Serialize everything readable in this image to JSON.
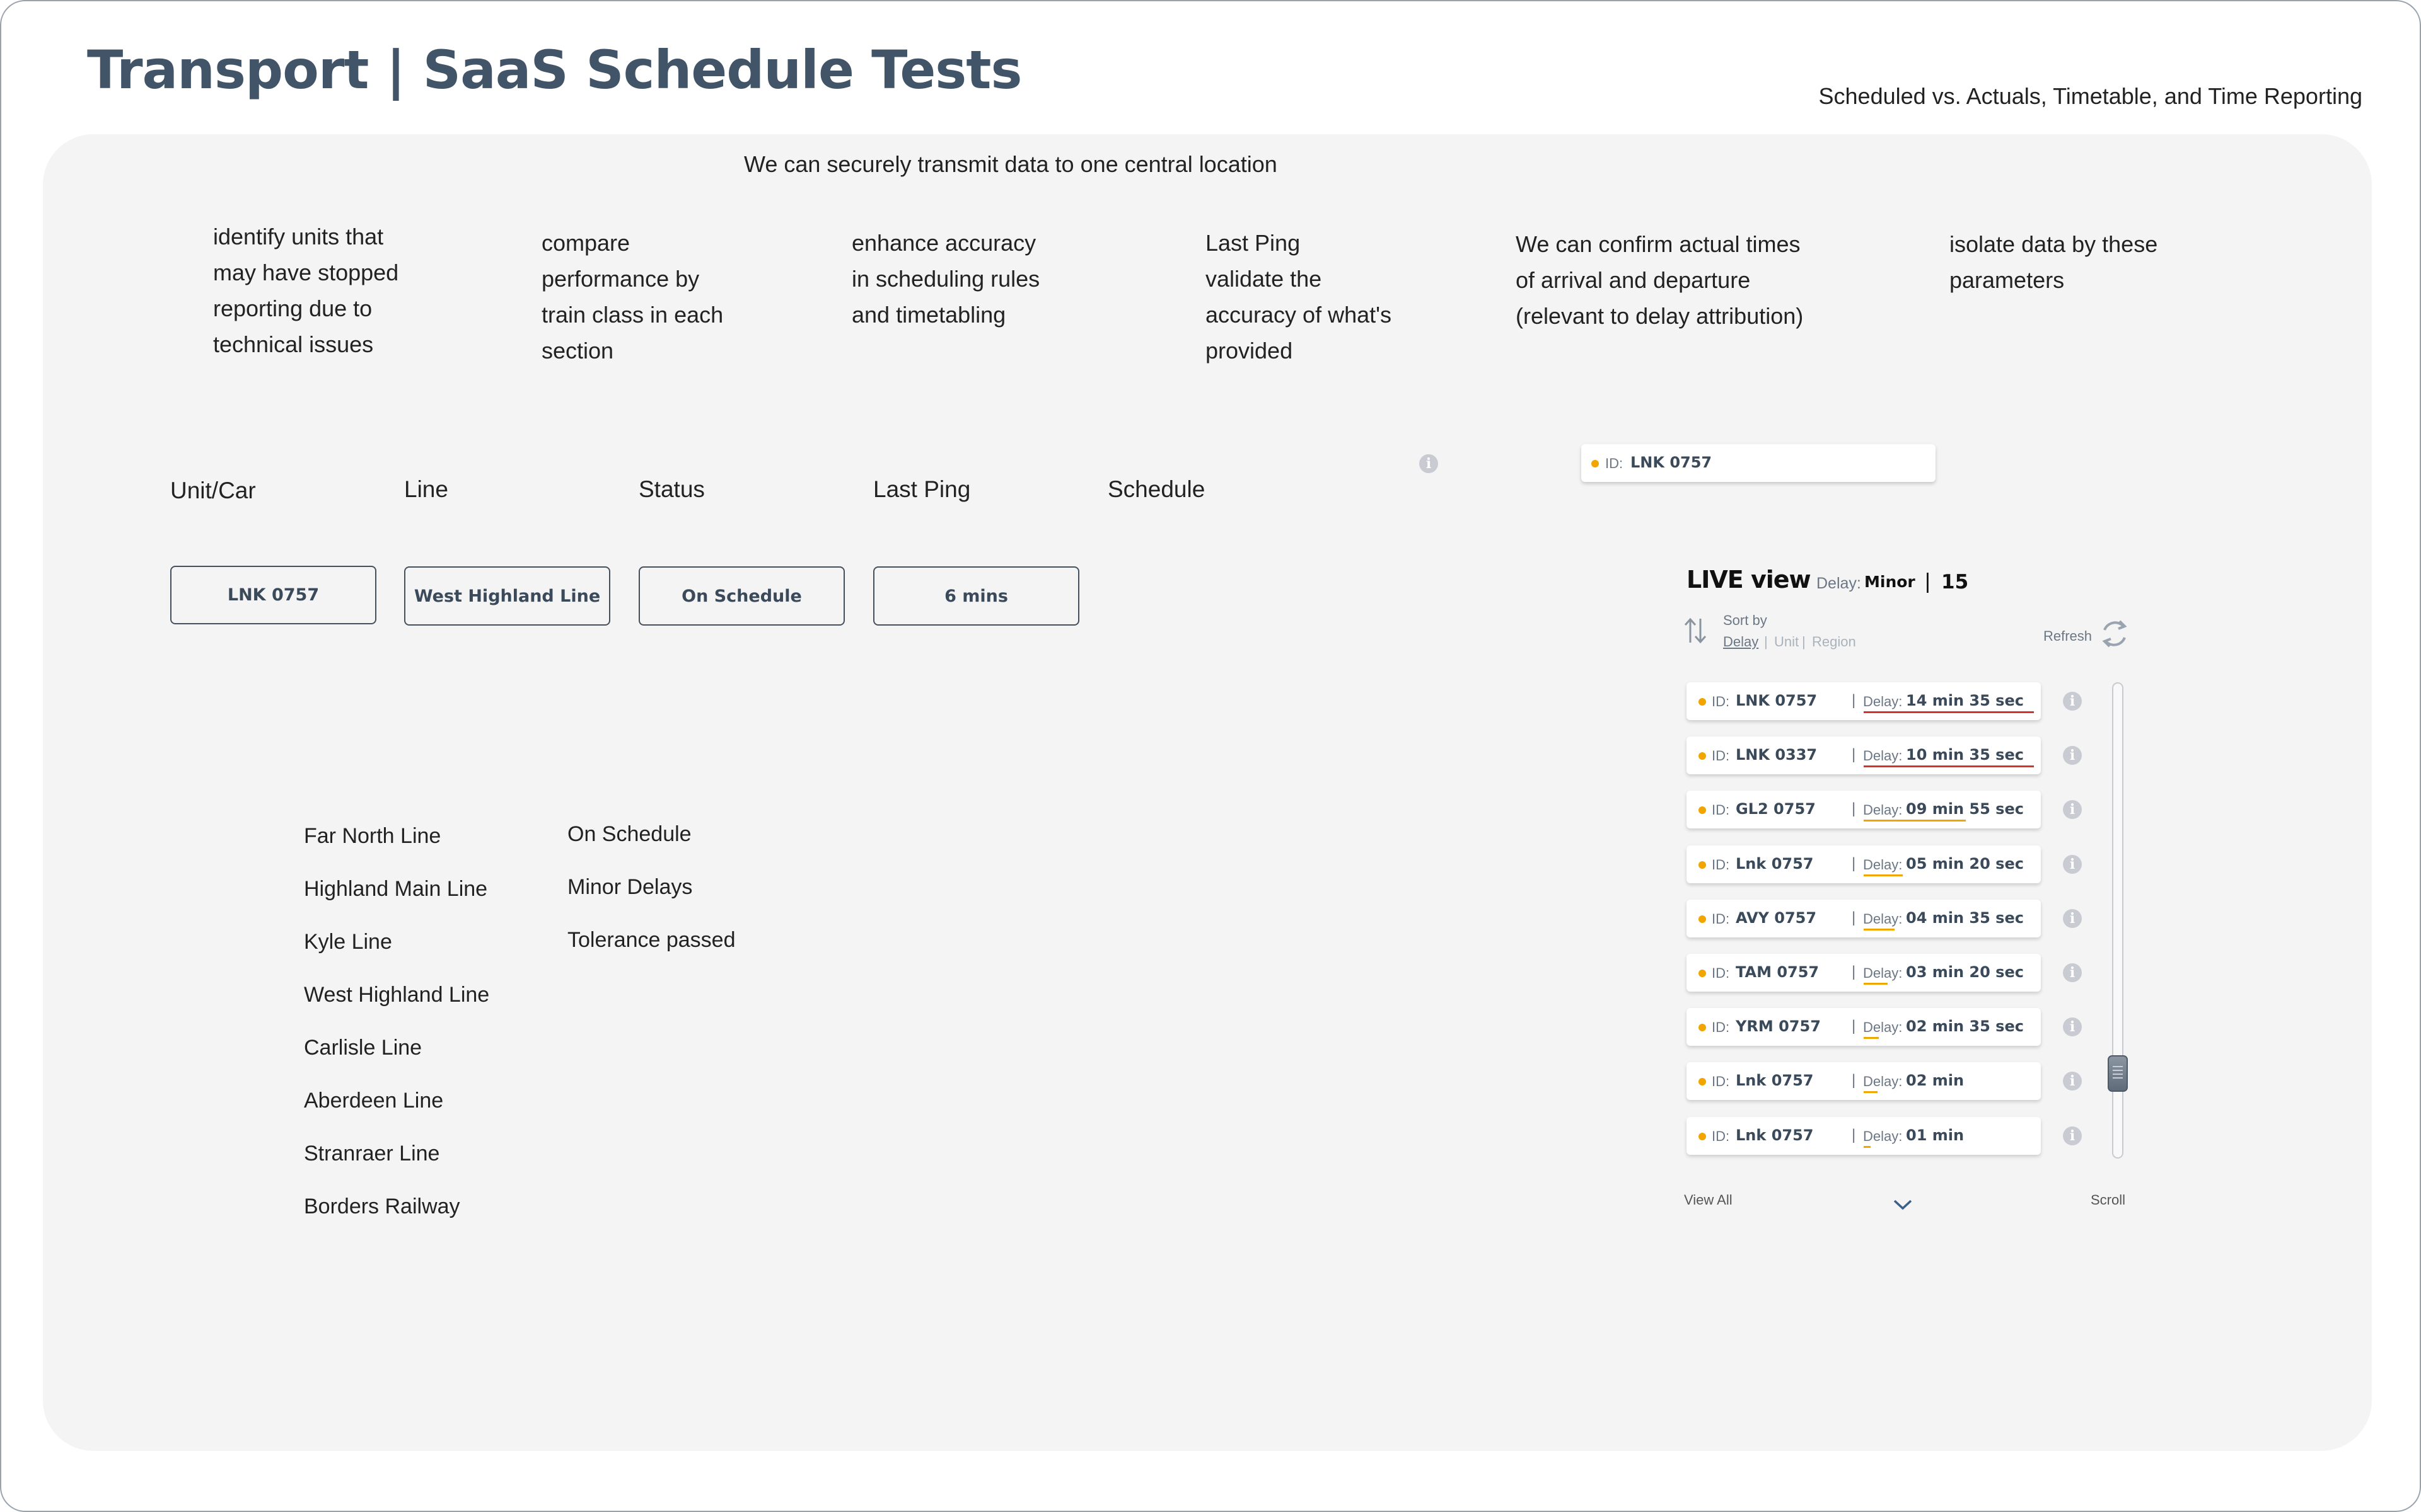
{
  "header": {
    "title": "Transport | SaaS Schedule Tests",
    "subtitle": "Scheduled vs. Actuals, Timetable, and Time Reporting"
  },
  "intro": {
    "central_text": "We can securely transmit data to one central location",
    "features": [
      "identify units that\nmay have stopped\nreporting due to\ntechnical issues",
      "compare\nperformance by\ntrain class in each\nsection",
      "enhance accuracy\nin scheduling rules\nand timetabling",
      "Last Ping\nvalidate the\naccuracy of what's\nprovided",
      "We can confirm actual times\nof arrival and departure\n(relevant to delay attribution)",
      "isolate data by these\nparameters"
    ]
  },
  "filters": {
    "columns": [
      "Unit/Car",
      "Line",
      "Status",
      "Last Ping",
      "Schedule"
    ],
    "values": {
      "unit": "LNK 0757",
      "line": "West Highland Line",
      "status": "On Schedule",
      "last_ping": "6 mins"
    }
  },
  "line_options": [
    "Far North Line",
    "Highland Main Line",
    "Kyle Line",
    "West Highland Line",
    "Carlisle Line",
    "Aberdeen Line",
    "Stranraer Line",
    "Borders Railway"
  ],
  "status_options": [
    "On Schedule",
    "Minor Delays",
    "Tolerance passed"
  ],
  "selected_card": {
    "id_label": "ID:",
    "id_value": "LNK 0757"
  },
  "live_view": {
    "title": "LIVE view",
    "delay_label": "Delay:",
    "delay_value": "Minor",
    "divider": "|",
    "count": "15",
    "sort_by_label": "Sort by",
    "sort_options": [
      "Delay",
      "Unit",
      "Region"
    ],
    "sort_sep": "|",
    "refresh_label": "Refresh",
    "view_all_label": "View All",
    "scroll_label": "Scroll",
    "row_id_label": "ID:",
    "row_delay_label": "Delay:",
    "row_sep": "|",
    "rows": [
      {
        "id": "LNK 0757",
        "delay": "14 min  35 sec",
        "bar_color": "#d0342c",
        "bar_fraction": 1.0
      },
      {
        "id": "LNK 0337",
        "delay": "10 min  35 sec",
        "bar_color": "#d0342c",
        "bar_fraction": 1.0
      },
      {
        "id": "GL2 0757",
        "delay": "09 min  55 sec",
        "bar_color": "#f0a500",
        "bar_fraction": 0.6
      },
      {
        "id": "Lnk 0757",
        "delay": "05 min  20 sec",
        "bar_color": "#f0a500",
        "bar_fraction": 0.23
      },
      {
        "id": "AVY 0757",
        "delay": "04 min  35 sec",
        "bar_color": "#f0a500",
        "bar_fraction": 0.18
      },
      {
        "id": "TAM 0757",
        "delay": "03 min  20 sec",
        "bar_color": "#f0a500",
        "bar_fraction": 0.14
      },
      {
        "id": "YRM 0757",
        "delay": "02 min  35 sec",
        "bar_color": "#f0a500",
        "bar_fraction": 0.09
      },
      {
        "id": "Lnk 0757",
        "delay": "02 min",
        "bar_color": "#f0a500",
        "bar_fraction": 0.08
      },
      {
        "id": "Lnk 0757",
        "delay": "01 min",
        "bar_color": "#f0a500",
        "bar_fraction": 0.04
      }
    ]
  }
}
